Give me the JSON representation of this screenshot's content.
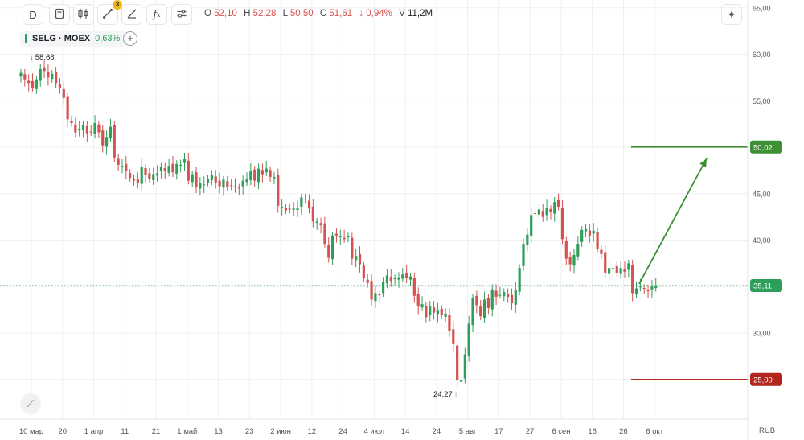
{
  "toolbar": {
    "interval_label": "D",
    "formula_label": "f",
    "formula_sub": "x",
    "drawing_badge": "3"
  },
  "ohlc": {
    "open_key": "O",
    "open": "52,10",
    "high_key": "H",
    "high": "52,28",
    "low_key": "L",
    "low": "50,50",
    "close_key": "C",
    "close": "51,61",
    "change": "↓ 0,94%",
    "volume_key": "V",
    "volume": "11,2M"
  },
  "legend": {
    "symbol": "SELG · MOEX",
    "change": "0,63%"
  },
  "annotations": {
    "high_label": "58,68",
    "low_label": "24,27"
  },
  "axis": {
    "currency": "RUB"
  },
  "colors": {
    "up": "#2e9e5b",
    "down": "#d4524f",
    "target_line": "#3c8f33",
    "stop_line": "#b3261e",
    "current_price": "#2e9e5b",
    "grid": "#eef0f2"
  },
  "chart_data": {
    "type": "candlestick",
    "instrument": "SELG · MOEX",
    "currency": "RUB",
    "y_ticks": [
      "65,00",
      "60,00",
      "55,00",
      "50,00",
      "45,00",
      "40,00",
      "35,00",
      "30,00",
      "25,00"
    ],
    "y_tick_values": [
      65,
      60,
      55,
      50,
      45,
      40,
      35,
      30,
      25
    ],
    "ylim": [
      20.6,
      65.0
    ],
    "x_ticks": [
      "10 мар",
      "20",
      "1 апр",
      "11",
      "21",
      "1 май",
      "13",
      "23",
      "2 июн",
      "12",
      "24",
      "4 июл",
      "14",
      "24",
      "5 авг",
      "17",
      "27",
      "6 сен",
      "16",
      "26",
      "6 окт"
    ],
    "x_tick_bar_index": [
      0,
      8,
      16,
      24,
      32,
      40,
      48,
      56,
      64,
      72,
      80,
      88,
      96,
      104,
      112,
      120,
      128,
      136,
      144,
      152,
      160
    ],
    "closes": [
      58.0,
      57.3,
      56.9,
      56.4,
      57.3,
      58.4,
      58.2,
      57.5,
      57.9,
      56.9,
      56.4,
      55.3,
      53.0,
      52.6,
      51.6,
      52.0,
      52.4,
      51.5,
      51.6,
      52.6,
      51.6,
      50.2,
      51.1,
      52.2,
      48.9,
      48.1,
      48.0,
      47.4,
      46.7,
      46.4,
      46.2,
      47.9,
      47.0,
      46.6,
      47.1,
      47.2,
      47.9,
      47.4,
      48.0,
      47.3,
      48.2,
      48.1,
      48.7,
      46.4,
      47.1,
      45.7,
      46.1,
      46.0,
      46.6,
      47.0,
      46.2,
      45.8,
      46.5,
      45.7,
      45.9,
      45.8,
      45.6,
      46.4,
      46.6,
      47.4,
      46.4,
      47.7,
      47.1,
      47.7,
      46.8,
      46.8,
      43.7,
      43.6,
      43.2,
      43.4,
      43.4,
      43.4,
      44.6,
      44.4,
      43.4,
      42.0,
      42.0,
      41.6,
      39.6,
      38.1,
      40.5,
      40.5,
      40.4,
      40.1,
      40.4,
      38.0,
      38.3,
      37.4,
      35.9,
      35.4,
      33.6,
      34.3,
      34.1,
      35.5,
      36.2,
      35.6,
      35.9,
      36.0,
      36.3,
      35.9,
      36.1,
      34.0,
      32.9,
      33.1,
      31.7,
      32.9,
      32.2,
      32.4,
      31.9,
      32.1,
      30.2,
      28.8,
      24.9,
      24.9,
      27.7,
      31.0,
      33.8,
      33.0,
      31.8,
      33.6,
      32.7,
      34.7,
      33.9,
      34.1,
      34.4,
      33.9,
      33.2,
      34.6,
      37.0,
      39.6,
      40.6,
      42.7,
      42.9,
      43.3,
      42.5,
      43.5,
      43.0,
      44.1,
      43.6,
      40.1,
      38.0,
      37.4,
      38.4,
      39.6,
      41.1,
      41.2,
      40.5,
      41.0,
      39.1,
      38.5,
      36.5,
      37.0,
      37.0,
      36.5,
      37.0,
      36.6,
      37.5,
      34.3,
      34.8,
      35.0,
      34.8,
      34.5,
      35.0,
      35.1
    ],
    "range_high": 58.68,
    "range_low": 24.27,
    "current_price": 35.11,
    "current_price_label": "35,11",
    "target_level": 50.02,
    "target_label": "50,02",
    "stop_level": 25.0,
    "stop_label": "25,00",
    "drawings": [
      {
        "type": "horizontal_segment",
        "level": 50.02,
        "color": "green"
      },
      {
        "type": "horizontal_segment",
        "level": 25.0,
        "color": "red"
      },
      {
        "type": "arrow",
        "from_price": 35.3,
        "to_price": 48.8,
        "color": "green"
      }
    ]
  }
}
